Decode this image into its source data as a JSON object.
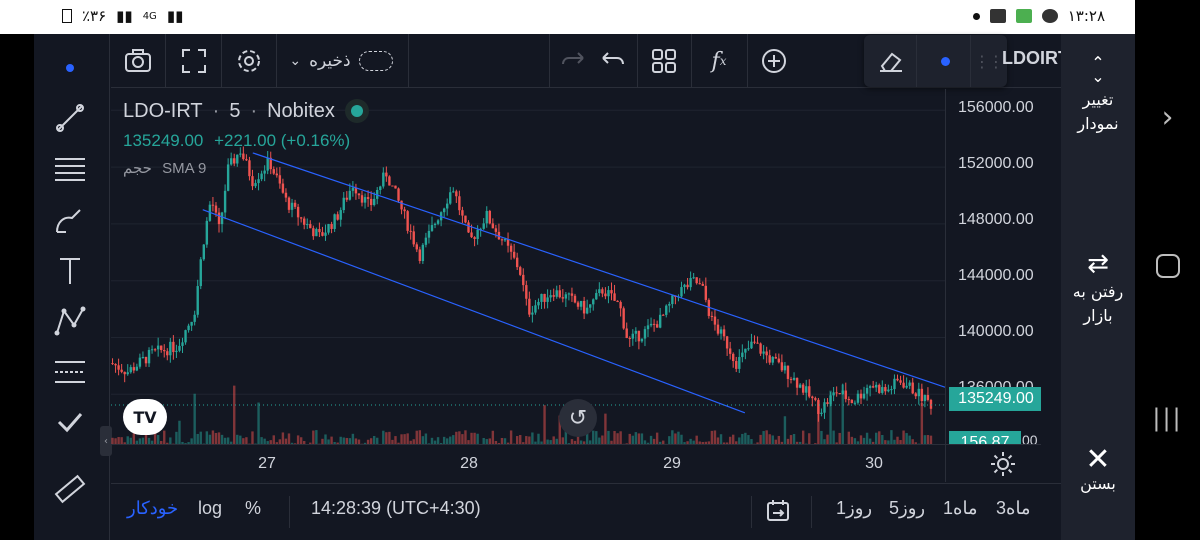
{
  "status_bar": {
    "battery_text": "٪۳۶",
    "network_text": "4G",
    "time": "۱۳:۲۸"
  },
  "toolbar": {
    "save_label": "ذخیره",
    "symbol_title": "LDOIRT"
  },
  "legend": {
    "symbol": "LDO-IRT",
    "interval": "5",
    "exchange": "Nobitex",
    "last_price": "135249.00",
    "change": "+221.00 (+0.16%)",
    "indicator_volume": "حجم",
    "indicator_sma": "SMA 9"
  },
  "price_axis": {
    "ticks": [
      "156000.00",
      "152000.00",
      "148000.00",
      "144000.00",
      "140000.00",
      "136000.00"
    ],
    "current_price_badge": "135249.00",
    "volume_badge": "156.87",
    "volume_badge_suffix": "00"
  },
  "time_axis": {
    "ticks": [
      "27",
      "28",
      "29",
      "30"
    ]
  },
  "bottom_bar": {
    "ranges": [
      "3ماه",
      "1ماه",
      "5روز",
      "1روز"
    ],
    "clock": "14:28:39 (UTC+4:30)",
    "percent": "%",
    "log": "log",
    "auto": "خودکار"
  },
  "side_panel": {
    "change_chart": "تغییر نمودار",
    "go_to_market": "رفتن به بازار",
    "close": "بستن"
  },
  "chart_data": {
    "type": "candlestick",
    "symbol": "LDO-IRT",
    "ylim": [
      132500,
      157500
    ],
    "x_ticks": [
      "27",
      "28",
      "29",
      "30"
    ],
    "price_path": [
      [
        0.0,
        138200
      ],
      [
        0.02,
        137600
      ],
      [
        0.05,
        138900
      ],
      [
        0.08,
        139400
      ],
      [
        0.1,
        141800
      ],
      [
        0.11,
        146500
      ],
      [
        0.12,
        149800
      ],
      [
        0.13,
        147500
      ],
      [
        0.14,
        151800
      ],
      [
        0.155,
        153200
      ],
      [
        0.17,
        151000
      ],
      [
        0.19,
        152400
      ],
      [
        0.21,
        149600
      ],
      [
        0.23,
        148200
      ],
      [
        0.25,
        147100
      ],
      [
        0.27,
        148400
      ],
      [
        0.29,
        150800
      ],
      [
        0.31,
        149200
      ],
      [
        0.33,
        151600
      ],
      [
        0.35,
        148800
      ],
      [
        0.37,
        145800
      ],
      [
        0.39,
        148300
      ],
      [
        0.41,
        150600
      ],
      [
        0.43,
        146700
      ],
      [
        0.45,
        148600
      ],
      [
        0.47,
        146800
      ],
      [
        0.49,
        144800
      ],
      [
        0.5,
        141800
      ],
      [
        0.51,
        142400
      ],
      [
        0.53,
        143300
      ],
      [
        0.55,
        142700
      ],
      [
        0.57,
        141900
      ],
      [
        0.59,
        143400
      ],
      [
        0.61,
        142200
      ],
      [
        0.62,
        139700
      ],
      [
        0.64,
        140400
      ],
      [
        0.66,
        141300
      ],
      [
        0.68,
        143200
      ],
      [
        0.7,
        144000
      ],
      [
        0.71,
        143300
      ],
      [
        0.72,
        141200
      ],
      [
        0.74,
        139400
      ],
      [
        0.75,
        138200
      ],
      [
        0.77,
        139600
      ],
      [
        0.79,
        138500
      ],
      [
        0.81,
        137600
      ],
      [
        0.83,
        136400
      ],
      [
        0.85,
        134900
      ],
      [
        0.87,
        136200
      ],
      [
        0.89,
        135500
      ],
      [
        0.91,
        136700
      ],
      [
        0.93,
        136200
      ],
      [
        0.945,
        137000
      ],
      [
        0.96,
        136400
      ],
      [
        0.985,
        135249
      ]
    ],
    "trendlines": [
      {
        "from": [
          0.17,
          153000
        ],
        "to": [
          1.0,
          136500
        ]
      },
      {
        "from": [
          0.11,
          149000
        ],
        "to": [
          0.76,
          134700
        ]
      }
    ],
    "last_price": 135249,
    "colors": {
      "up": "#26a69a",
      "down": "#ef5350",
      "trendline": "#2962ff"
    }
  }
}
